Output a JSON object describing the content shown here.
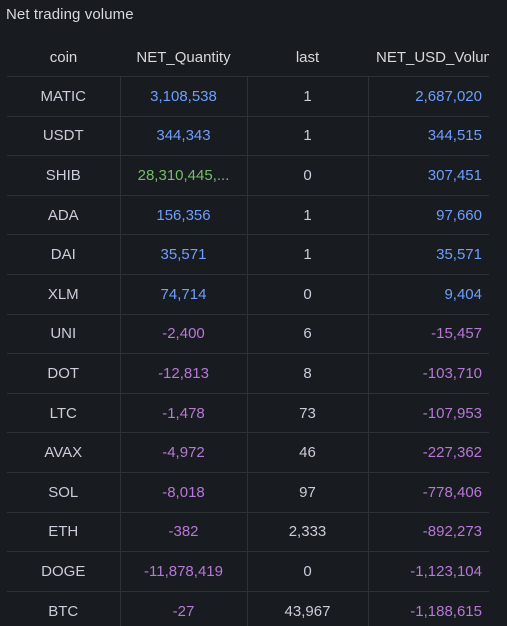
{
  "panel": {
    "title": "Net trading volume"
  },
  "colors": {
    "positive": "#6e9fff",
    "large": "#73bf69",
    "negative": "#b877d9"
  },
  "table": {
    "headers": {
      "coin": "coin",
      "net_quantity": "NET_Quantity",
      "last": "last",
      "net_usd": "NET_USD_Volume"
    },
    "rows": [
      {
        "coin": "MATIC",
        "qty": "3,108,538",
        "qty_color": "blue",
        "last": "1",
        "usd": "2,687,020",
        "usd_color": "blue"
      },
      {
        "coin": "USDT",
        "qty": "344,343",
        "qty_color": "blue",
        "last": "1",
        "usd": "344,515",
        "usd_color": "blue"
      },
      {
        "coin": "SHIB",
        "qty": "28,310,445,...",
        "qty_color": "green",
        "last": "0",
        "usd": "307,451",
        "usd_color": "blue"
      },
      {
        "coin": "ADA",
        "qty": "156,356",
        "qty_color": "blue",
        "last": "1",
        "usd": "97,660",
        "usd_color": "blue"
      },
      {
        "coin": "DAI",
        "qty": "35,571",
        "qty_color": "blue",
        "last": "1",
        "usd": "35,571",
        "usd_color": "blue"
      },
      {
        "coin": "XLM",
        "qty": "74,714",
        "qty_color": "blue",
        "last": "0",
        "usd": "9,404",
        "usd_color": "blue"
      },
      {
        "coin": "UNI",
        "qty": "-2,400",
        "qty_color": "purple",
        "last": "6",
        "usd": "-15,457",
        "usd_color": "purple"
      },
      {
        "coin": "DOT",
        "qty": "-12,813",
        "qty_color": "purple",
        "last": "8",
        "usd": "-103,710",
        "usd_color": "purple"
      },
      {
        "coin": "LTC",
        "qty": "-1,478",
        "qty_color": "purple",
        "last": "73",
        "usd": "-107,953",
        "usd_color": "purple"
      },
      {
        "coin": "AVAX",
        "qty": "-4,972",
        "qty_color": "purple",
        "last": "46",
        "usd": "-227,362",
        "usd_color": "purple"
      },
      {
        "coin": "SOL",
        "qty": "-8,018",
        "qty_color": "purple",
        "last": "97",
        "usd": "-778,406",
        "usd_color": "purple"
      },
      {
        "coin": "ETH",
        "qty": "-382",
        "qty_color": "purple",
        "last": "2,333",
        "usd": "-892,273",
        "usd_color": "purple"
      },
      {
        "coin": "DOGE",
        "qty": "-11,878,419",
        "qty_color": "purple",
        "last": "0",
        "usd": "-1,123,104",
        "usd_color": "purple"
      },
      {
        "coin": "BTC",
        "qty": "-27",
        "qty_color": "purple",
        "last": "43,967",
        "usd": "-1,188,615",
        "usd_color": "purple"
      }
    ]
  }
}
